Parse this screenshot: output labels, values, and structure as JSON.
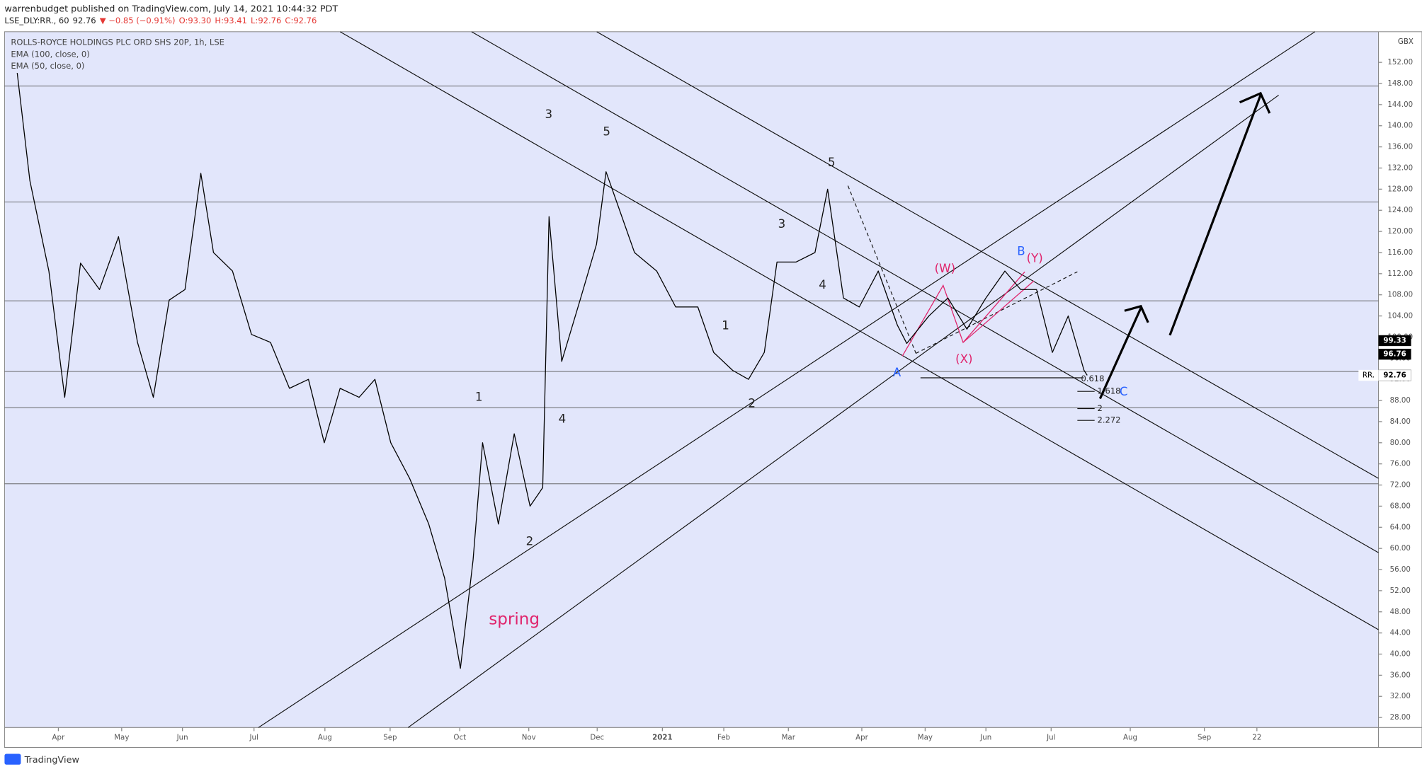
{
  "header": {
    "published": "warrenbudget published on TradingView.com, July 14, 2021 10:44:32 PDT",
    "symbol": "LSE_DLY:RR., 60",
    "last": "92.76",
    "change": "▼ −0.85 (−0.91%)",
    "open": "O:93.30",
    "high": "H:93.41",
    "low": "L:92.76",
    "close": "C:92.76"
  },
  "legend": {
    "title": "ROLLS-ROYCE HOLDINGS PLC ORD SHS 20P, 1h, LSE",
    "ema1": "EMA (100, close, 0)",
    "ema2": "EMA (50, close, 0)"
  },
  "footer": {
    "brand": "TradingView"
  },
  "chart_data": {
    "type": "line",
    "currency": "GBX",
    "x": [
      0.2,
      0.4,
      0.7,
      0.95,
      1.2,
      1.5,
      1.8,
      2.1,
      2.35,
      2.6,
      2.85,
      3.1,
      3.3,
      3.6,
      3.9,
      4.2,
      4.5,
      4.8,
      5.05,
      5.3,
      5.6,
      5.85,
      6.1,
      6.4,
      6.7,
      6.95,
      7.2,
      7.4,
      7.55,
      7.8,
      8.05,
      8.3,
      8.5,
      8.6,
      8.8,
      9.1,
      9.35,
      9.5,
      9.7,
      9.95,
      10.3,
      10.6,
      10.95,
      11.2,
      11.5,
      11.75,
      12.0,
      12.2,
      12.5,
      12.8,
      13.0,
      13.25,
      13.5,
      13.8,
      14.1,
      14.25,
      14.6,
      14.9,
      15.2,
      15.5,
      15.8,
      16.05,
      16.3,
      16.55,
      16.8,
      17.05,
      17.1
    ],
    "series": [
      {
        "name": "RR.",
        "color": "#000000",
        "values": [
          150,
          129.6,
          112.5,
          88.6,
          114,
          109,
          119,
          99,
          88.6,
          107,
          109,
          131,
          116,
          112.5,
          100.5,
          99,
          90.3,
          92,
          80,
          90.3,
          88.6,
          92,
          80,
          73.2,
          64.6,
          54.4,
          37.3,
          57.8,
          80,
          64.6,
          81.7,
          68,
          71.5,
          122.8,
          95.4,
          107.4,
          117.6,
          131.3,
          124.5,
          116,
          112.5,
          105.7,
          105.7,
          97.1,
          93.7,
          92,
          97.1,
          114.2,
          114.2,
          116,
          128,
          107.4,
          105.7,
          112.5,
          102.3,
          98.8,
          104,
          107.4,
          101.5,
          107.4,
          112.5,
          109,
          109,
          97.1,
          104,
          93.7,
          92.76
        ]
      }
    ],
    "price_labels": [
      {
        "value": 99.33,
        "label": "99.33"
      },
      {
        "value": 96.76,
        "label": "96.76"
      },
      {
        "value": 92.76,
        "label": "92.76"
      }
    ],
    "xlim": [
      0,
      21.7
    ],
    "xticks": [
      {
        "value": 0.85,
        "label": "Apr"
      },
      {
        "value": 1.85,
        "label": "May"
      },
      {
        "value": 2.81,
        "label": "Jun"
      },
      {
        "value": 3.94,
        "label": "Jul"
      },
      {
        "value": 5.06,
        "label": "Aug"
      },
      {
        "value": 6.09,
        "label": "Sep"
      },
      {
        "value": 7.19,
        "label": "Oct"
      },
      {
        "value": 8.28,
        "label": "Nov"
      },
      {
        "value": 9.36,
        "label": "Dec"
      },
      {
        "value": 10.39,
        "label": "2021"
      },
      {
        "value": 11.36,
        "label": "Feb"
      },
      {
        "value": 12.38,
        "label": "Mar"
      },
      {
        "value": 13.54,
        "label": "Apr"
      },
      {
        "value": 14.54,
        "label": "May"
      },
      {
        "value": 15.5,
        "label": "Jun"
      },
      {
        "value": 16.53,
        "label": "Jul"
      },
      {
        "value": 17.78,
        "label": "Aug"
      },
      {
        "value": 18.95,
        "label": "Sep"
      },
      {
        "value": 19.78,
        "label": "22"
      }
    ],
    "ylim": [
      26.1,
      157.8
    ],
    "yticks": [
      {
        "value": 28,
        "label": "28.00"
      },
      {
        "value": 32,
        "label": "32.00"
      },
      {
        "value": 36,
        "label": "36.00"
      },
      {
        "value": 40,
        "label": "40.00"
      },
      {
        "value": 44,
        "label": "44.00"
      },
      {
        "value": 48,
        "label": "48.00"
      },
      {
        "value": 52,
        "label": "52.00"
      },
      {
        "value": 56,
        "label": "56.00"
      },
      {
        "value": 60,
        "label": "60.00"
      },
      {
        "value": 64,
        "label": "64.00"
      },
      {
        "value": 68,
        "label": "68.00"
      },
      {
        "value": 72,
        "label": "72.00"
      },
      {
        "value": 76,
        "label": "76.00"
      },
      {
        "value": 80,
        "label": "80.00"
      },
      {
        "value": 84,
        "label": "84.00"
      },
      {
        "value": 88,
        "label": "88.00"
      },
      {
        "value": 92,
        "label": "92.00"
      },
      {
        "value": 96,
        "label": "96.00"
      },
      {
        "value": 100,
        "label": "100.00"
      },
      {
        "value": 104,
        "label": "104.00"
      },
      {
        "value": 108,
        "label": "108.00"
      },
      {
        "value": 112,
        "label": "112.00"
      },
      {
        "value": 116,
        "label": "116.00"
      },
      {
        "value": 120,
        "label": "120.00"
      },
      {
        "value": 124,
        "label": "124.00"
      },
      {
        "value": 128,
        "label": "128.00"
      },
      {
        "value": 132,
        "label": "132.00"
      },
      {
        "value": 136,
        "label": "136.00"
      },
      {
        "value": 140,
        "label": "140.00"
      },
      {
        "value": 144,
        "label": "144.00"
      },
      {
        "value": 148,
        "label": "148.00"
      },
      {
        "value": 152,
        "label": "152.00"
      }
    ],
    "fib_labels": [
      "0.618",
      "1.618",
      "2",
      "2.272"
    ],
    "annotations": [
      {
        "text": "3",
        "color": "#222222"
      },
      {
        "text": "5",
        "color": "#222222"
      },
      {
        "text": "5",
        "color": "#222222"
      },
      {
        "text": "3",
        "color": "#222222"
      },
      {
        "text": "4",
        "color": "#222222"
      },
      {
        "text": "1",
        "color": "#222222"
      },
      {
        "text": "2",
        "color": "#222222"
      },
      {
        "text": "1",
        "color": "#222222"
      },
      {
        "text": "4",
        "color": "#222222"
      },
      {
        "text": "2",
        "color": "#222222"
      },
      {
        "text": "spring",
        "color": "#e0246c"
      },
      {
        "text": "(W)",
        "color": "#e0246c"
      },
      {
        "text": "(X)",
        "color": "#e0246c"
      },
      {
        "text": "(Y)",
        "color": "#e0246c"
      },
      {
        "text": "A",
        "color": "#2962ff"
      },
      {
        "text": "B",
        "color": "#2962ff"
      },
      {
        "text": "C",
        "color": "#2962ff"
      }
    ]
  }
}
